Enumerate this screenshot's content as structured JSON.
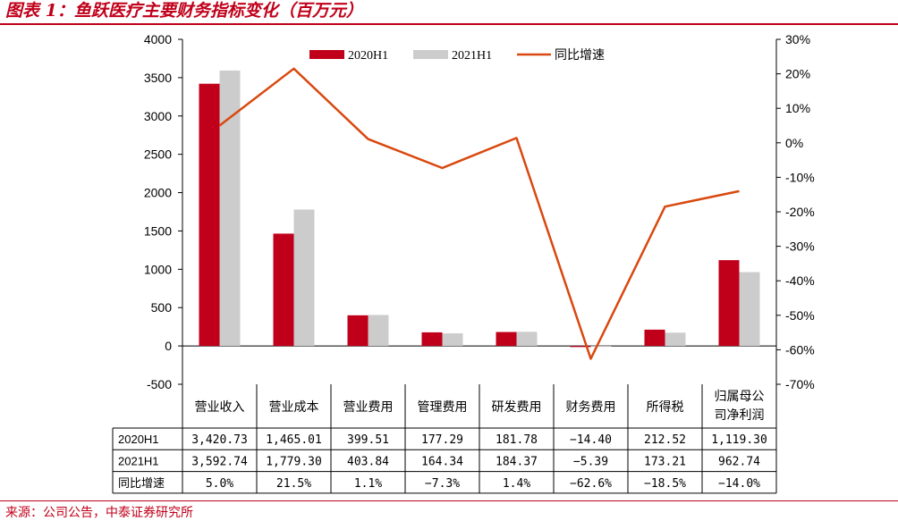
{
  "title": "图表 1：鱼跃医疗主要财务指标变化（百万元）",
  "source": "来源：公司公告，中泰证券研究所",
  "colors": {
    "series_2020": "#c0001a",
    "series_2021": "#cccccc",
    "growth_line": "#d9480f",
    "accent": "#c0001a"
  },
  "chart_data": {
    "type": "bar",
    "categories": [
      "营业收入",
      "营业成本",
      "营业费用",
      "管理费用",
      "研发费用",
      "财务费用",
      "所得税",
      "归属母公司净利润"
    ],
    "series": [
      {
        "name": "2020H1",
        "values": [
          3420.73,
          1465.01,
          399.51,
          177.29,
          181.78,
          -14.4,
          212.52,
          1119.3
        ]
      },
      {
        "name": "2021H1",
        "values": [
          3592.74,
          1779.3,
          403.84,
          164.34,
          184.37,
          -5.39,
          173.21,
          962.74
        ]
      }
    ],
    "line_series": {
      "name": "同比增速",
      "values": [
        5.0,
        21.5,
        1.1,
        -7.3,
        1.4,
        -62.6,
        -18.5,
        -14.0
      ],
      "axis": "right"
    },
    "ylim": [
      -500,
      4000
    ],
    "y_ticks": [
      "4000",
      "3500",
      "3000",
      "2500",
      "2000",
      "1500",
      "1000",
      "500",
      "0",
      "-500"
    ],
    "y2lim": [
      -70,
      30
    ],
    "y2_ticks": [
      "30%",
      "20%",
      "10%",
      "0%",
      "-10%",
      "-20%",
      "-30%",
      "-40%",
      "-50%",
      "-60%",
      "-70%"
    ],
    "legend_position": "top-center",
    "grid": false,
    "table": {
      "header_lines": [
        [
          "营业收入"
        ],
        [
          "营业成本"
        ],
        [
          "营业费用"
        ],
        [
          "管理费用"
        ],
        [
          "研发费用"
        ],
        [
          "财务费用"
        ],
        [
          "所得税"
        ],
        [
          "归属母公",
          "司净利润"
        ]
      ],
      "rows": [
        {
          "label": "2020H1",
          "cells": [
            "3,420.73",
            "1,465.01",
            "399.51",
            "177.29",
            "181.78",
            "−14.40",
            "212.52",
            "1,119.30"
          ]
        },
        {
          "label": "2021H1",
          "cells": [
            "3,592.74",
            "1,779.30",
            "403.84",
            "164.34",
            "184.37",
            "−5.39",
            "173.21",
            "962.74"
          ]
        },
        {
          "label": "同比增速",
          "cells": [
            "5.0%",
            "21.5%",
            "1.1%",
            "−7.3%",
            "1.4%",
            "−62.6%",
            "−18.5%",
            "−14.0%"
          ]
        }
      ]
    }
  }
}
